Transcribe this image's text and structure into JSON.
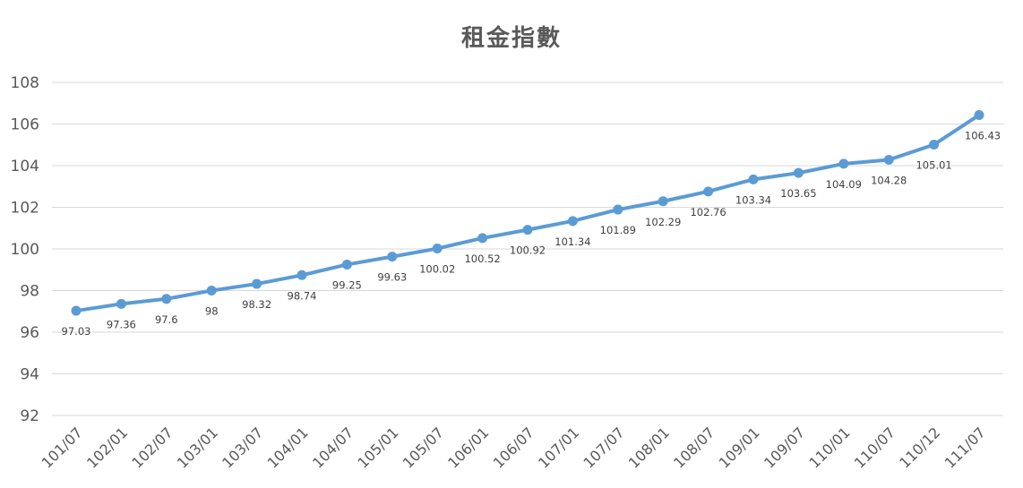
{
  "chart_data": {
    "type": "line",
    "title": "租金指數",
    "xlabel": "",
    "ylabel": "",
    "ylim": [
      92,
      108
    ],
    "yticks": [
      "92",
      "94",
      "96",
      "98",
      "100",
      "102",
      "104",
      "106",
      "108"
    ],
    "categories": [
      "101/07",
      "102/01",
      "102/07",
      "103/01",
      "103/07",
      "104/01",
      "104/07",
      "105/01",
      "105/07",
      "106/01",
      "106/07",
      "107/01",
      "107/07",
      "108/01",
      "108/07",
      "109/01",
      "109/07",
      "110/01",
      "110/07",
      "110/12",
      "111/07"
    ],
    "series": [
      {
        "values": [
          97.03,
          97.36,
          97.6,
          98,
          98.32,
          98.74,
          99.25,
          99.63,
          100.02,
          100.52,
          100.92,
          101.34,
          101.89,
          102.29,
          102.76,
          103.34,
          103.65,
          104.09,
          104.28,
          105.01,
          106.43
        ],
        "labels": [
          "97.03",
          "97.36",
          "97.6",
          "98",
          "98.32",
          "98.74",
          "99.25",
          "99.63",
          "100.02",
          "100.52",
          "100.92",
          "101.34",
          "101.89",
          "102.29",
          "102.76",
          "103.34",
          "103.65",
          "104.09",
          "104.28",
          "105.01",
          "106.43"
        ],
        "color": "#5b9bd5"
      }
    ],
    "grid": true,
    "legend": "none",
    "gridColor": "#d9d9d9"
  }
}
